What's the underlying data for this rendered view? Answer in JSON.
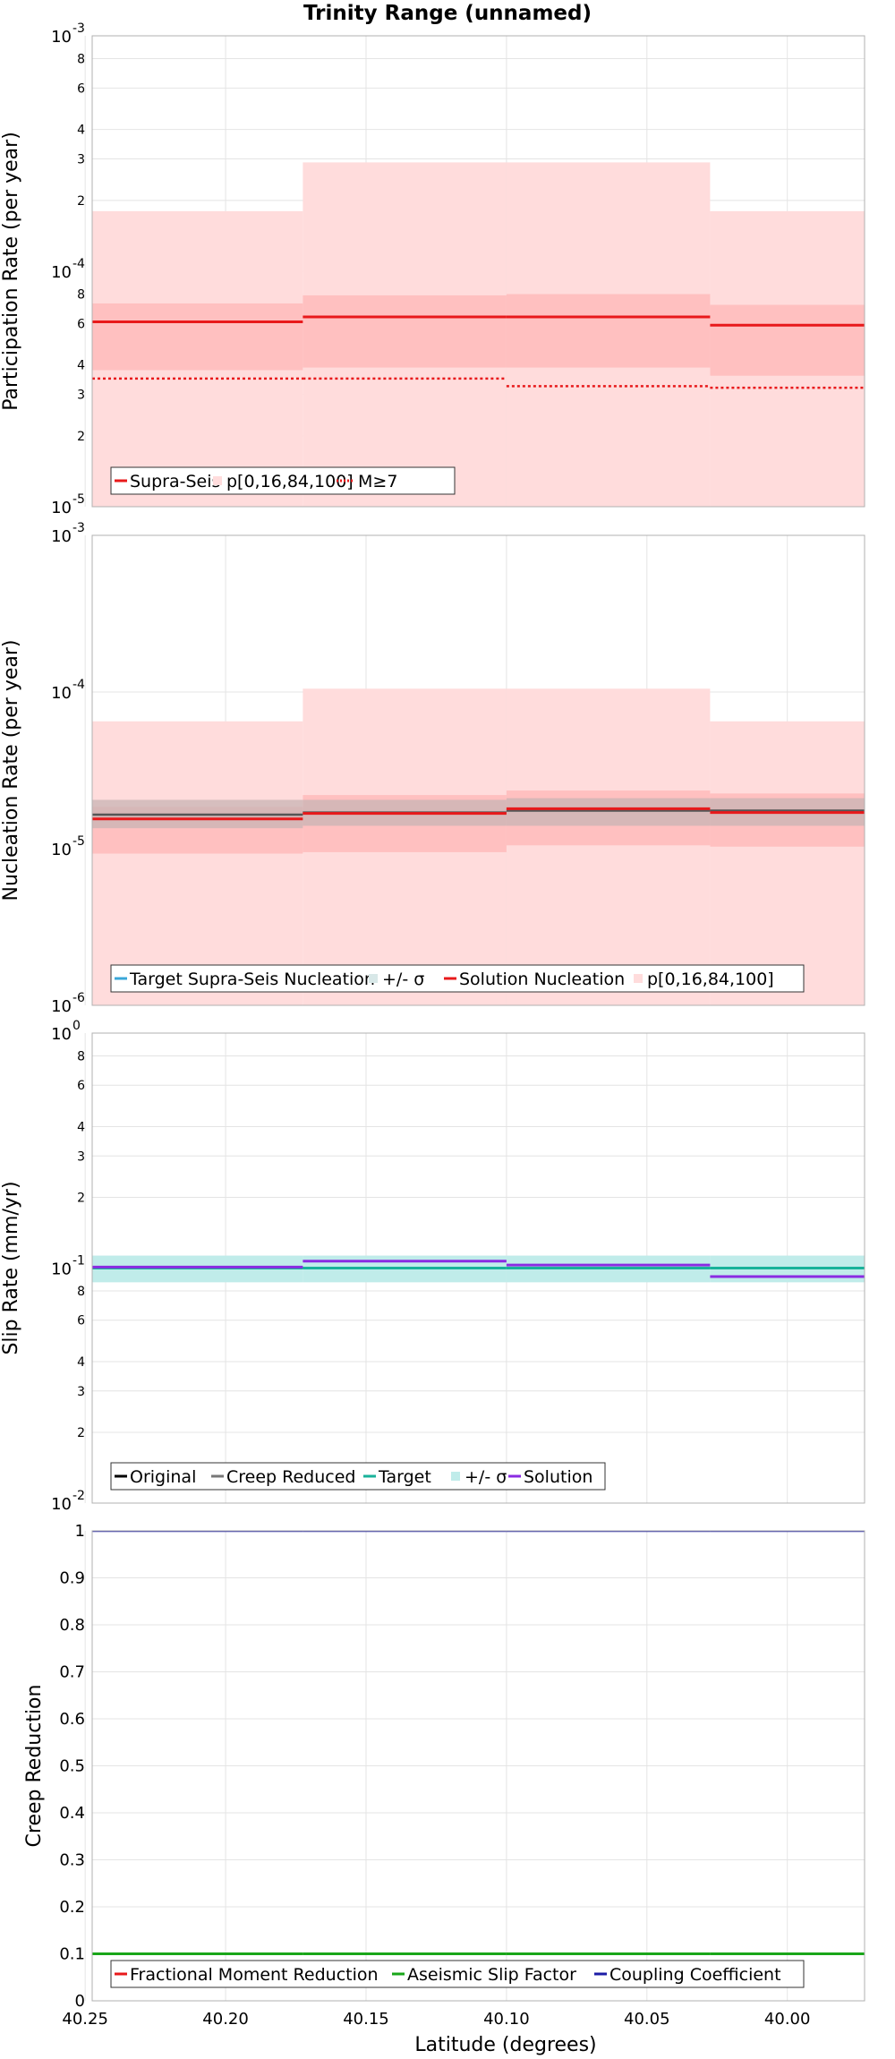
{
  "chart_data": {
    "title": "Trinity Range (unnamed)",
    "xlabel": "Latitude (degrees)",
    "x_ticks": [
      "40.25",
      "40.20",
      "40.15",
      "40.10",
      "40.05",
      "40.00"
    ],
    "xlim": [
      40.2475,
      39.9725
    ],
    "segments": [
      [
        40.2475,
        40.1725
      ],
      [
        40.1725,
        40.1
      ],
      [
        40.1,
        40.0275
      ],
      [
        40.0275,
        39.9725
      ]
    ],
    "panels": [
      {
        "type": "line",
        "ylabel": "Participation Rate (per year)",
        "yscale": "log",
        "ylim": [
          1e-05,
          0.001
        ],
        "ticks": [
          {
            "v": 0.001,
            "label": "10",
            "exp": "-3"
          },
          {
            "v": 0.0008,
            "label": "8"
          },
          {
            "v": 0.0006,
            "label": "6"
          },
          {
            "v": 0.0004,
            "label": "4"
          },
          {
            "v": 0.0003,
            "label": "3"
          },
          {
            "v": 0.0002,
            "label": "2"
          },
          {
            "v": 0.0001,
            "label": "10",
            "exp": "-4"
          },
          {
            "v": 8e-05,
            "label": "8"
          },
          {
            "v": 6e-05,
            "label": "6"
          },
          {
            "v": 4e-05,
            "label": "4"
          },
          {
            "v": 3e-05,
            "label": "3"
          },
          {
            "v": 2e-05,
            "label": "2"
          },
          {
            "v": 1e-05,
            "label": "10",
            "exp": "-5"
          }
        ],
        "bands": [
          {
            "name": "p[0,16,84,100]",
            "color": "#ffdcdc",
            "lo": [
              1e-05,
              1e-05,
              1e-05,
              1e-05
            ],
            "hi": [
              0.00018,
              0.00029,
              0.00029,
              0.00018
            ]
          },
          {
            "name": "",
            "color": "#ffc0c0",
            "lo": [
              3.8e-05,
              3.9e-05,
              3.9e-05,
              3.6e-05
            ],
            "hi": [
              7.3e-05,
              7.9e-05,
              8e-05,
              7.2e-05
            ]
          }
        ],
        "series": [
          {
            "name": "Supra-Seis",
            "color": "#e8191b",
            "dash": false,
            "width": 3,
            "values": [
              6.1e-05,
              6.4e-05,
              6.4e-05,
              5.9e-05
            ]
          },
          {
            "name": "M≥7",
            "color": "#e8191b",
            "dash": true,
            "width": 2.5,
            "values": [
              3.5e-05,
              3.5e-05,
              3.25e-05,
              3.2e-05
            ]
          }
        ],
        "legend": [
          {
            "type": "line",
            "label": "Supra-Seis",
            "color": "#e8191b"
          },
          {
            "type": "box",
            "label": "p[0,16,84,100]",
            "color": "#ffdcdc"
          },
          {
            "type": "dash",
            "label": "M≥7",
            "color": "#e8191b"
          }
        ]
      },
      {
        "type": "line",
        "ylabel": "Nucleation Rate (per year)",
        "yscale": "log",
        "ylim": [
          1e-06,
          0.001
        ],
        "ticks": [
          {
            "v": 0.001,
            "label": "10",
            "exp": "-3"
          },
          {
            "v": 0.0001,
            "label": "10",
            "exp": "-4"
          },
          {
            "v": 1e-05,
            "label": "10",
            "exp": "-5"
          },
          {
            "v": 1e-06,
            "label": "10",
            "exp": "-6"
          }
        ],
        "bands": [
          {
            "name": "p[0,16,84,100]",
            "color": "#ffdcdc",
            "lo": [
              1e-06,
              1e-06,
              1e-06,
              1e-06
            ],
            "hi": [
              6.5e-05,
              0.000105,
              0.000105,
              6.5e-05
            ]
          },
          {
            "name": "",
            "color": "#ffc0c0",
            "lo": [
              9.3e-06,
              9.5e-06,
              1.05e-05,
              1.03e-05
            ],
            "hi": [
              1.85e-05,
              2.2e-05,
              2.35e-05,
              2.25e-05
            ]
          },
          {
            "name": "+/- σ",
            "color": "#c8b4b4",
            "lo": [
              1.35e-05,
              1.4e-05,
              1.4e-05,
              1.4e-05
            ],
            "hi": [
              2.05e-05,
              2.05e-05,
              2.1e-05,
              2.1e-05
            ]
          }
        ],
        "series": [
          {
            "name": "Target Supra-Seis Nucleation",
            "color": "#555555",
            "dash": false,
            "width": 2.5,
            "values": [
              1.65e-05,
              1.7e-05,
              1.75e-05,
              1.75e-05
            ]
          },
          {
            "name": "Solution Nucleation",
            "color": "#e8191b",
            "dash": false,
            "width": 3,
            "values": [
              1.55e-05,
              1.68e-05,
              1.8e-05,
              1.7e-05
            ]
          }
        ],
        "legend": [
          {
            "type": "line",
            "label": "Target Supra-Seis Nucleation",
            "color": "#3aa7d8"
          },
          {
            "type": "box",
            "label": "+/- σ",
            "color": "#d8e8e8"
          },
          {
            "type": "line",
            "label": "Solution Nucleation",
            "color": "#e8191b"
          },
          {
            "type": "box",
            "label": "p[0,16,84,100]",
            "color": "#ffdcdc"
          }
        ]
      },
      {
        "type": "line",
        "ylabel": "Slip Rate (mm/yr)",
        "yscale": "log",
        "ylim": [
          0.01,
          1
        ],
        "ticks": [
          {
            "v": 1,
            "label": "10",
            "exp": "0"
          },
          {
            "v": 0.8,
            "label": "8"
          },
          {
            "v": 0.6,
            "label": "6"
          },
          {
            "v": 0.4,
            "label": "4"
          },
          {
            "v": 0.3,
            "label": "3"
          },
          {
            "v": 0.2,
            "label": "2"
          },
          {
            "v": 0.1,
            "label": "10",
            "exp": "-1"
          },
          {
            "v": 0.08,
            "label": "8"
          },
          {
            "v": 0.06,
            "label": "6"
          },
          {
            "v": 0.04,
            "label": "4"
          },
          {
            "v": 0.03,
            "label": "3"
          },
          {
            "v": 0.02,
            "label": "2"
          },
          {
            "v": 0.01,
            "label": "10",
            "exp": "-2"
          }
        ],
        "bands": [
          {
            "name": "+/- σ",
            "color": "#c0ecea",
            "lo": [
              0.087,
              0.087,
              0.087,
              0.087
            ],
            "hi": [
              0.113,
              0.113,
              0.113,
              0.113
            ]
          }
        ],
        "series": [
          {
            "name": "Target",
            "color": "#19b29a",
            "dash": false,
            "width": 3,
            "values": [
              0.1,
              0.1,
              0.1,
              0.1
            ]
          },
          {
            "name": "Solution",
            "color": "#8a2be2",
            "dash": false,
            "width": 3,
            "values": [
              0.101,
              0.107,
              0.103,
              0.092
            ]
          }
        ],
        "legend": [
          {
            "type": "line",
            "label": "Original",
            "color": "#000000"
          },
          {
            "type": "line",
            "label": "Creep Reduced",
            "color": "#777777"
          },
          {
            "type": "line",
            "label": "Target",
            "color": "#19b29a"
          },
          {
            "type": "box",
            "label": "+/- σ",
            "color": "#c0ecea"
          },
          {
            "type": "line",
            "label": "Solution",
            "color": "#8a2be2"
          }
        ]
      },
      {
        "type": "line",
        "ylabel": "Creep Reduction",
        "yscale": "linear",
        "ylim": [
          0,
          1
        ],
        "ticks": [
          {
            "v": 1,
            "label": "1"
          },
          {
            "v": 0.9,
            "label": "0.9"
          },
          {
            "v": 0.8,
            "label": "0.8"
          },
          {
            "v": 0.7,
            "label": "0.7"
          },
          {
            "v": 0.6,
            "label": "0.6"
          },
          {
            "v": 0.5,
            "label": "0.5"
          },
          {
            "v": 0.4,
            "label": "0.4"
          },
          {
            "v": 0.3,
            "label": "0.3"
          },
          {
            "v": 0.2,
            "label": "0.2"
          },
          {
            "v": 0.1,
            "label": "0.1"
          },
          {
            "v": 0,
            "label": "0"
          }
        ],
        "bands": [],
        "series": [
          {
            "name": "Coupling Coefficient",
            "color": "#1c1ca6",
            "dash": false,
            "width": 2.5,
            "values": [
              1,
              1,
              1,
              1
            ]
          },
          {
            "name": "Aseismic Slip Factor",
            "color": "#19a619",
            "dash": false,
            "width": 3,
            "values": [
              0.1,
              0.1,
              0.1,
              0.1
            ]
          }
        ],
        "legend": [
          {
            "type": "line",
            "label": "Fractional Moment Reduction",
            "color": "#e8191b"
          },
          {
            "type": "line",
            "label": "Aseismic Slip Factor",
            "color": "#19a619"
          },
          {
            "type": "line",
            "label": "Coupling Coefficient",
            "color": "#1c1ca6"
          }
        ]
      }
    ]
  }
}
